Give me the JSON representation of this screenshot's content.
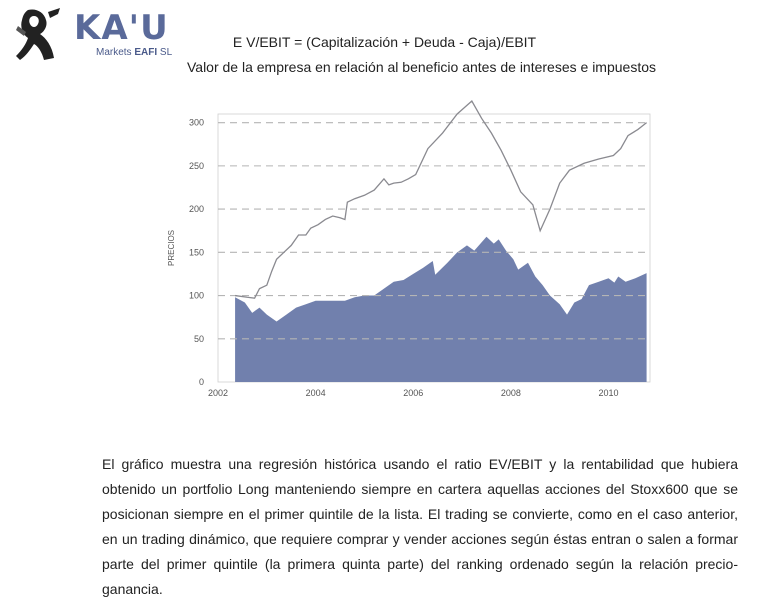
{
  "header": {
    "logo_text": "KA'U",
    "logo_sub_1": "Markets ",
    "logo_sub_2": "EAFI",
    "logo_sub_3": " SL",
    "formula": "E V/EBIT  = (Capitalización + Deuda - Caja)/EBIT",
    "subtitle": "Valor de la empresa en relación al beneficio antes de intereses e impuestos"
  },
  "chart_data": {
    "type": "area",
    "ylabel": "PRECIOS",
    "xlim": [
      2002,
      2010.85
    ],
    "ylim": [
      0,
      310
    ],
    "x_ticks": [
      2002,
      2004,
      2006,
      2008,
      2010
    ],
    "y_ticks": [
      0,
      50,
      100,
      150,
      200,
      250,
      300
    ],
    "grid": "horizontal dashed",
    "colors": {
      "line": "#8a8a90",
      "area": "#7180ad",
      "grid": "#b5b5b5"
    },
    "series": [
      {
        "kind": "line",
        "points": [
          [
            2002.35,
            100
          ],
          [
            2002.6,
            98
          ],
          [
            2002.75,
            97
          ],
          [
            2002.85,
            108
          ],
          [
            2003.0,
            112
          ],
          [
            2003.1,
            128
          ],
          [
            2003.2,
            142
          ],
          [
            2003.35,
            150
          ],
          [
            2003.5,
            158
          ],
          [
            2003.65,
            170
          ],
          [
            2003.8,
            170
          ],
          [
            2003.9,
            178
          ],
          [
            2004.05,
            182
          ],
          [
            2004.2,
            188
          ],
          [
            2004.35,
            192
          ],
          [
            2004.5,
            190
          ],
          [
            2004.6,
            188
          ],
          [
            2004.65,
            208
          ],
          [
            2004.8,
            212
          ],
          [
            2005.0,
            216
          ],
          [
            2005.2,
            222
          ],
          [
            2005.4,
            235
          ],
          [
            2005.5,
            228
          ],
          [
            2005.6,
            230
          ],
          [
            2005.75,
            231
          ],
          [
            2005.9,
            235
          ],
          [
            2006.05,
            240
          ],
          [
            2006.3,
            270
          ],
          [
            2006.6,
            288
          ],
          [
            2006.9,
            310
          ],
          [
            2007.2,
            325
          ],
          [
            2007.4,
            305
          ],
          [
            2007.6,
            288
          ],
          [
            2007.8,
            268
          ],
          [
            2008.0,
            245
          ],
          [
            2008.2,
            220
          ],
          [
            2008.45,
            205
          ],
          [
            2008.6,
            175
          ],
          [
            2008.8,
            200
          ],
          [
            2009.0,
            230
          ],
          [
            2009.2,
            245
          ],
          [
            2009.5,
            253
          ],
          [
            2009.8,
            258
          ],
          [
            2010.1,
            262
          ],
          [
            2010.25,
            270
          ],
          [
            2010.4,
            285
          ],
          [
            2010.6,
            292
          ],
          [
            2010.78,
            300
          ]
        ]
      },
      {
        "kind": "area",
        "points": [
          [
            2002.35,
            98
          ],
          [
            2002.55,
            92
          ],
          [
            2002.7,
            80
          ],
          [
            2002.85,
            86
          ],
          [
            2003.0,
            78
          ],
          [
            2003.2,
            70
          ],
          [
            2003.4,
            78
          ],
          [
            2003.6,
            86
          ],
          [
            2003.8,
            90
          ],
          [
            2004.0,
            94
          ],
          [
            2004.3,
            94
          ],
          [
            2004.6,
            94
          ],
          [
            2004.8,
            98
          ],
          [
            2005.0,
            100
          ],
          [
            2005.2,
            100
          ],
          [
            2005.4,
            108
          ],
          [
            2005.6,
            116
          ],
          [
            2005.8,
            118
          ],
          [
            2006.0,
            125
          ],
          [
            2006.2,
            132
          ],
          [
            2006.4,
            140
          ],
          [
            2006.45,
            124
          ],
          [
            2006.7,
            138
          ],
          [
            2006.9,
            150
          ],
          [
            2007.1,
            158
          ],
          [
            2007.25,
            152
          ],
          [
            2007.5,
            168
          ],
          [
            2007.65,
            160
          ],
          [
            2007.75,
            165
          ],
          [
            2007.9,
            152
          ],
          [
            2008.05,
            142
          ],
          [
            2008.15,
            130
          ],
          [
            2008.35,
            138
          ],
          [
            2008.5,
            122
          ],
          [
            2008.65,
            112
          ],
          [
            2008.8,
            100
          ],
          [
            2009.0,
            90
          ],
          [
            2009.15,
            78
          ],
          [
            2009.3,
            92
          ],
          [
            2009.45,
            96
          ],
          [
            2009.6,
            112
          ],
          [
            2009.8,
            116
          ],
          [
            2010.0,
            120
          ],
          [
            2010.12,
            115
          ],
          [
            2010.2,
            122
          ],
          [
            2010.35,
            116
          ],
          [
            2010.55,
            120
          ],
          [
            2010.78,
            126
          ]
        ]
      }
    ]
  },
  "paragraph": "El gráfico muestra una regresión histórica usando el ratio EV/EBIT y la rentabilidad que hubiera obtenido un portfolio Long manteniendo siempre en cartera aquellas acciones del Stoxx600 que se posicionan siempre en el primer quintile de la lista. El trading se convierte, como en el caso anterior, en un trading dinámico, que requiere comprar y vender acciones según éstas entran o salen a formar parte del primer quintile (la primera quinta parte)   del ranking ordenado según la relación precio-ganancia."
}
